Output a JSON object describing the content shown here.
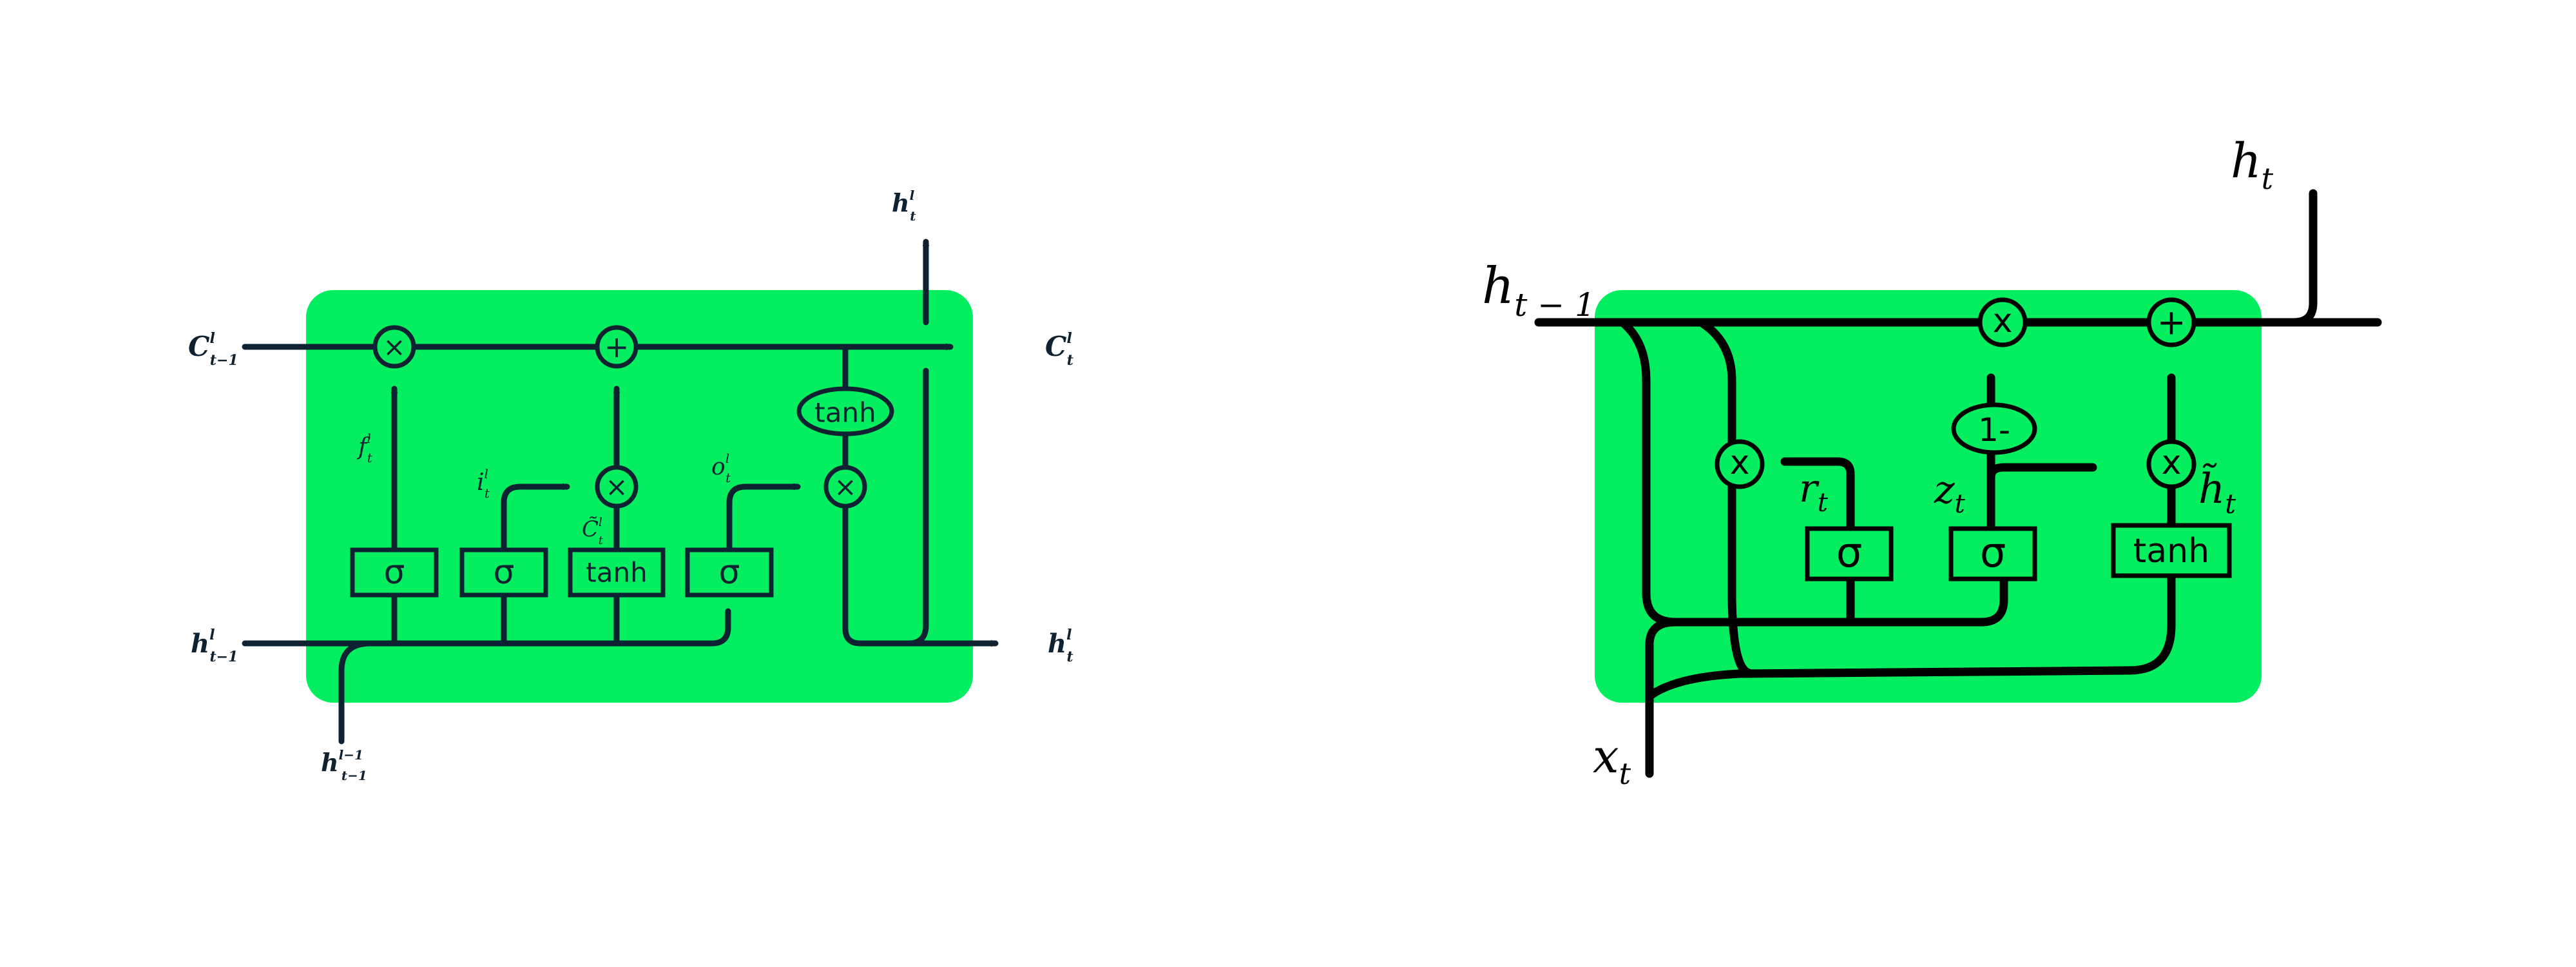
{
  "colors": {
    "cell_fill": "#05ee5f",
    "lstm_stroke": "#0f2232",
    "gru_stroke": "#000000",
    "background": "#ffffff"
  },
  "lstm": {
    "labels": {
      "c_prev_main": "C",
      "c_prev_sup": "l",
      "c_prev_sub": "t−1",
      "c_out_main": "C",
      "c_out_sup": "l",
      "c_out_sub": "t",
      "h_prev_main": "h",
      "h_prev_sup": "l",
      "h_prev_sub": "t−1",
      "h_out_right_main": "h",
      "h_out_right_sup": "l",
      "h_out_right_sub": "t",
      "h_out_top_main": "h",
      "h_out_top_sup": "l",
      "h_out_top_sub": "t",
      "h_below_main": "h",
      "h_below_sup": "l−1",
      "h_below_sub": "t−1",
      "f_main": "f",
      "f_sup": "l",
      "f_sub": "t",
      "i_main": "i",
      "i_sup": "l",
      "i_sub": "t",
      "o_main": "o",
      "o_sup": "l",
      "o_sub": "t",
      "ctilde_main": "C̃",
      "ctilde_sup": "l",
      "ctilde_sub": "t"
    },
    "ops": {
      "multiply": "×",
      "add": "+",
      "tanh": "tanh",
      "sigma": "σ"
    }
  },
  "gru": {
    "labels": {
      "h_prev_main": "h",
      "h_prev_sub": "t − 1",
      "h_out_main": "h",
      "h_out_sub": "t",
      "x_main": "x",
      "x_sub": "t",
      "r_main": "r",
      "r_sub": "t",
      "z_main": "z",
      "z_sub": "t",
      "htilde_main": "h̃",
      "htilde_sub": "t"
    },
    "ops": {
      "multiply": "x",
      "add": "+",
      "one_minus": "1-",
      "tanh": "tanh",
      "sigma": "σ"
    }
  }
}
